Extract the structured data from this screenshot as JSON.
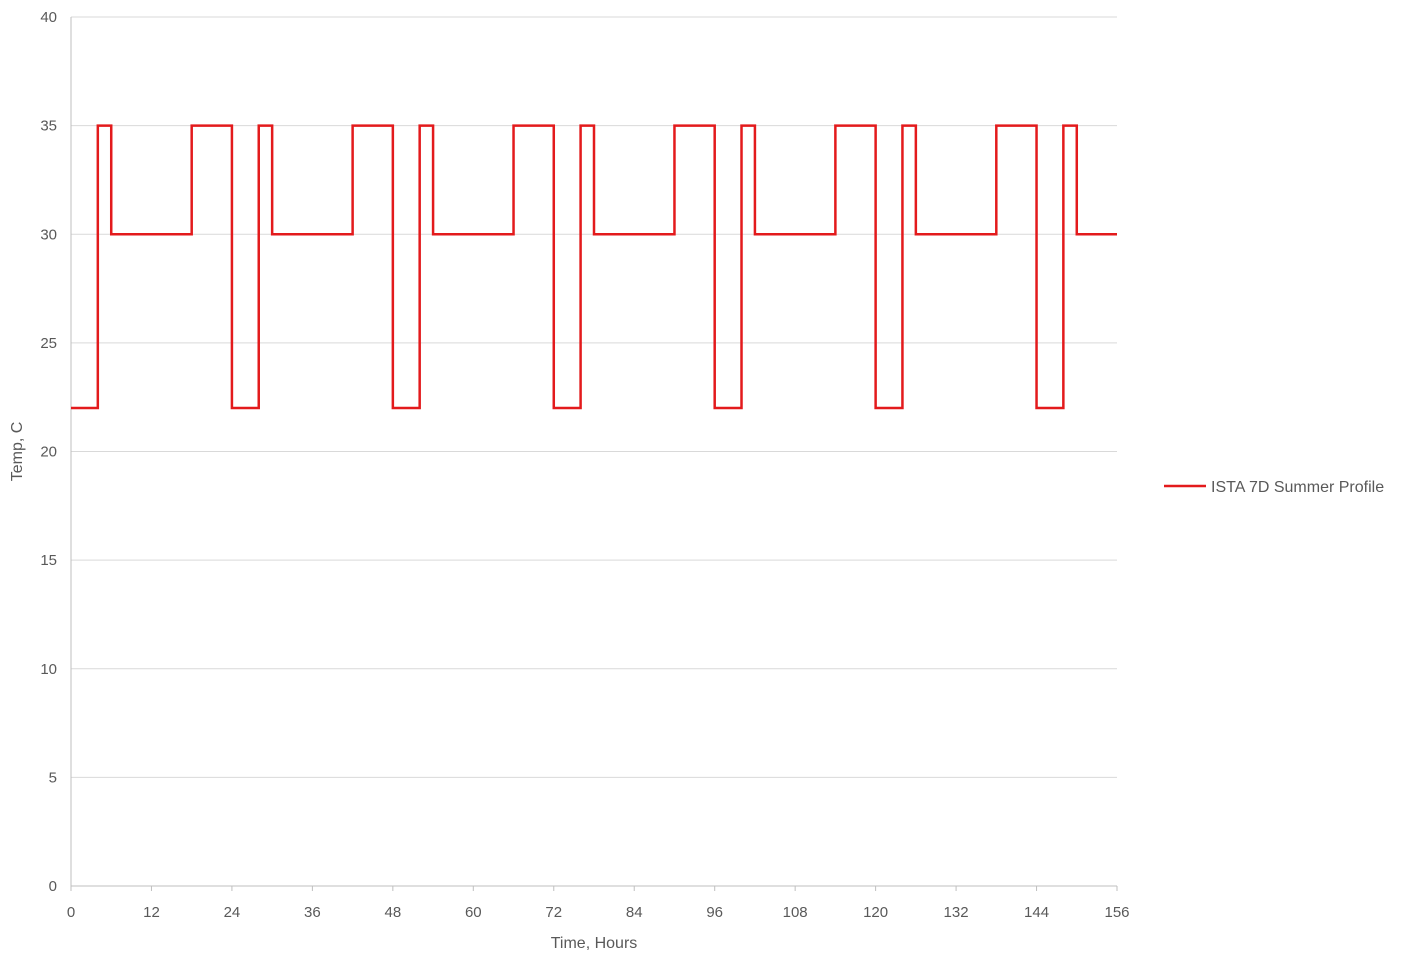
{
  "chart_data": {
    "type": "line",
    "title": "",
    "xlabel": "Time, Hours",
    "ylabel": "Temp, C",
    "xlim": [
      0,
      156
    ],
    "ylim": [
      0,
      40
    ],
    "x_ticks": [
      0,
      12,
      24,
      36,
      48,
      60,
      72,
      84,
      96,
      108,
      120,
      132,
      144,
      156
    ],
    "y_ticks": [
      0,
      5,
      10,
      15,
      20,
      25,
      30,
      35,
      40
    ],
    "grid": "horizontal",
    "legend_position": "right",
    "series": [
      {
        "name": "ISTA 7D Summer Profile",
        "color": "#e31a1c",
        "x": [
          0,
          4,
          4,
          6,
          6,
          18,
          18,
          24,
          24,
          28,
          28,
          30,
          30,
          42,
          42,
          48,
          48,
          52,
          52,
          54,
          54,
          66,
          66,
          72,
          72,
          76,
          76,
          78,
          78,
          90,
          90,
          96,
          96,
          100,
          100,
          102,
          102,
          114,
          114,
          120,
          120,
          124,
          124,
          126,
          126,
          138,
          138,
          144,
          144,
          148,
          148,
          150,
          150,
          156
        ],
        "y": [
          22,
          22,
          35,
          35,
          30,
          30,
          35,
          35,
          22,
          22,
          35,
          35,
          30,
          30,
          35,
          35,
          22,
          22,
          35,
          35,
          30,
          30,
          35,
          35,
          22,
          22,
          35,
          35,
          30,
          30,
          35,
          35,
          22,
          22,
          35,
          35,
          30,
          30,
          35,
          35,
          22,
          22,
          35,
          35,
          30,
          30,
          35,
          35,
          22,
          22,
          35,
          35,
          30,
          30
        ]
      }
    ]
  }
}
